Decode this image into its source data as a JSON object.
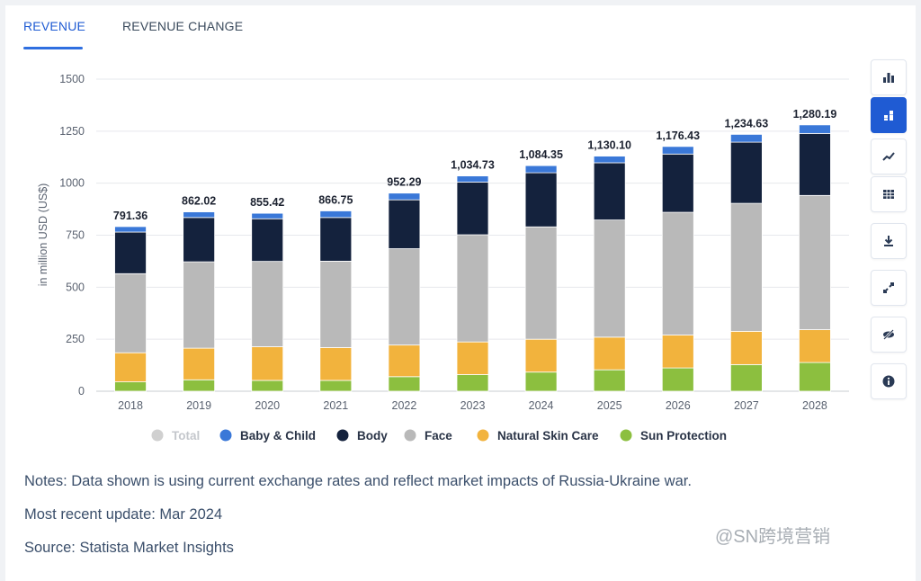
{
  "tabs": [
    {
      "label": "REVENUE",
      "active": true
    },
    {
      "label": "REVENUE CHANGE",
      "active": false
    }
  ],
  "sidebar": {
    "buttons": [
      {
        "icon": "bar-chart-icon",
        "active": false
      },
      {
        "icon": "stacked-bar-icon",
        "active": true
      },
      {
        "icon": "line-chart-icon",
        "active": false
      },
      {
        "icon": "table-icon",
        "active": false
      },
      {
        "icon": "download-icon",
        "active": false
      },
      {
        "icon": "fullscreen-icon",
        "active": false
      },
      {
        "icon": "hide-icon",
        "active": false
      },
      {
        "icon": "info-icon",
        "active": false
      }
    ]
  },
  "chart_data": {
    "type": "bar",
    "stacked": true,
    "categories": [
      "2018",
      "2019",
      "2020",
      "2021",
      "2022",
      "2023",
      "2024",
      "2025",
      "2026",
      "2027",
      "2028"
    ],
    "ylabel": "in million USD (US$)",
    "ylim": [
      0,
      1500
    ],
    "yticks": [
      0,
      250,
      500,
      750,
      1000,
      1250,
      1500
    ],
    "ytick_labels": [
      "0",
      "250",
      "500",
      "750",
      "1000",
      "1250",
      "1500"
    ],
    "grid": true,
    "totals": [
      791.36,
      862.02,
      855.42,
      866.75,
      952.29,
      1034.73,
      1084.35,
      1130.1,
      1176.43,
      1234.63,
      1280.19
    ],
    "total_labels": [
      "791.36",
      "862.02",
      "855.42",
      "866.75",
      "952.29",
      "1,034.73",
      "1,084.35",
      "1,130.10",
      "1,176.43",
      "1,234.63",
      "1,280.19"
    ],
    "legend_position": "bottom",
    "legend": [
      {
        "name": "Total",
        "color": "#d0d0d0",
        "disabled": true
      },
      {
        "name": "Baby & Child",
        "color": "#3a78d8"
      },
      {
        "name": "Body",
        "color": "#14223d"
      },
      {
        "name": "Face",
        "color": "#b9b9b9"
      },
      {
        "name": "Natural Skin Care",
        "color": "#f2b33d"
      },
      {
        "name": "Sun Protection",
        "color": "#8cbf3f"
      }
    ],
    "series": [
      {
        "name": "Sun Protection",
        "color": "#8cbf3f",
        "values": [
          45,
          55,
          52,
          52,
          70,
          80,
          92,
          103,
          112,
          128,
          138
        ]
      },
      {
        "name": "Natural Skin Care",
        "color": "#f2b33d",
        "values": [
          140,
          152,
          162,
          158,
          152,
          157,
          158,
          157,
          158,
          160,
          158
        ]
      },
      {
        "name": "Face",
        "color": "#b9b9b9",
        "values": [
          380,
          415,
          410,
          415,
          463,
          515,
          540,
          563,
          590,
          615,
          645
        ]
      },
      {
        "name": "Body",
        "color": "#14223d",
        "values": [
          200,
          213,
          205,
          210,
          235,
          253,
          260,
          275,
          280,
          294,
          298
        ]
      },
      {
        "name": "Baby & Child",
        "color": "#3a78d8",
        "values": [
          26.36,
          27.02,
          26.42,
          31.75,
          32.29,
          29.73,
          34.35,
          32.1,
          36.43,
          37.63,
          41.19
        ]
      }
    ]
  },
  "notes": {
    "line1": "Notes: Data shown is using current exchange rates and reflect market impacts of Russia-Ukraine war.",
    "line2": "Most recent update: Mar 2024",
    "line3": "Source: Statista Market Insights"
  },
  "watermark": "@SN跨境营销"
}
